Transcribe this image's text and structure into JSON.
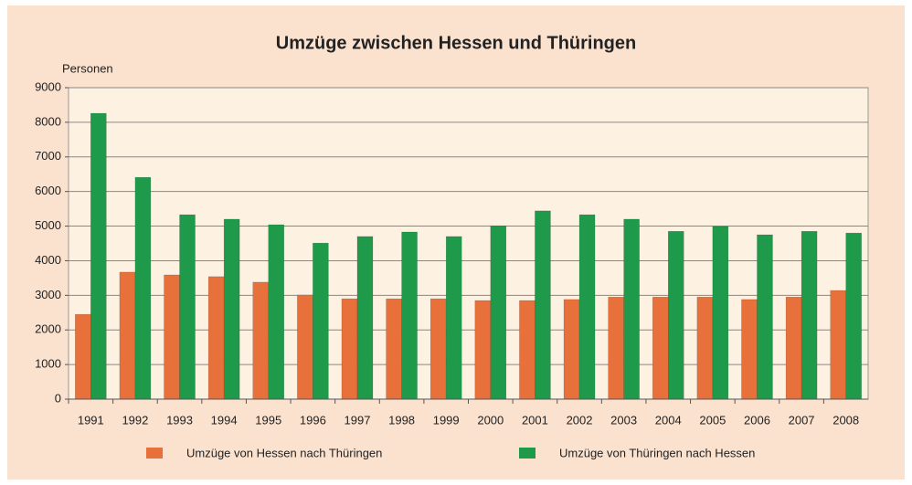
{
  "chart_data": {
    "type": "bar",
    "title": "Umzüge zwischen Hessen und Thüringen",
    "y_label": "Personen",
    "categories": [
      "1991",
      "1992",
      "1993",
      "1994",
      "1995",
      "1996",
      "1997",
      "1998",
      "1999",
      "2000",
      "2001",
      "2002",
      "2003",
      "2004",
      "2005",
      "2006",
      "2007",
      "2008"
    ],
    "series": [
      {
        "name": "Umzüge von Hessen nach Thüringen",
        "color": "#e8703a",
        "values": [
          2450,
          3670,
          3590,
          3540,
          3380,
          3010,
          2900,
          2900,
          2900,
          2850,
          2850,
          2880,
          2950,
          2950,
          2950,
          2880,
          2950,
          3140
        ]
      },
      {
        "name": "Umzüge von Thüringen nach Hessen",
        "color": "#1f9a4a",
        "values": [
          8260,
          6410,
          5330,
          5200,
          5040,
          4510,
          4700,
          4830,
          4700,
          5010,
          5440,
          5330,
          5200,
          4850,
          4990,
          4750,
          4850,
          4800
        ]
      }
    ],
    "ylim": [
      0,
      9000
    ],
    "yticks": [
      0,
      1000,
      2000,
      3000,
      4000,
      5000,
      6000,
      7000,
      8000,
      9000
    ],
    "grid": true,
    "legend": "bottom"
  }
}
